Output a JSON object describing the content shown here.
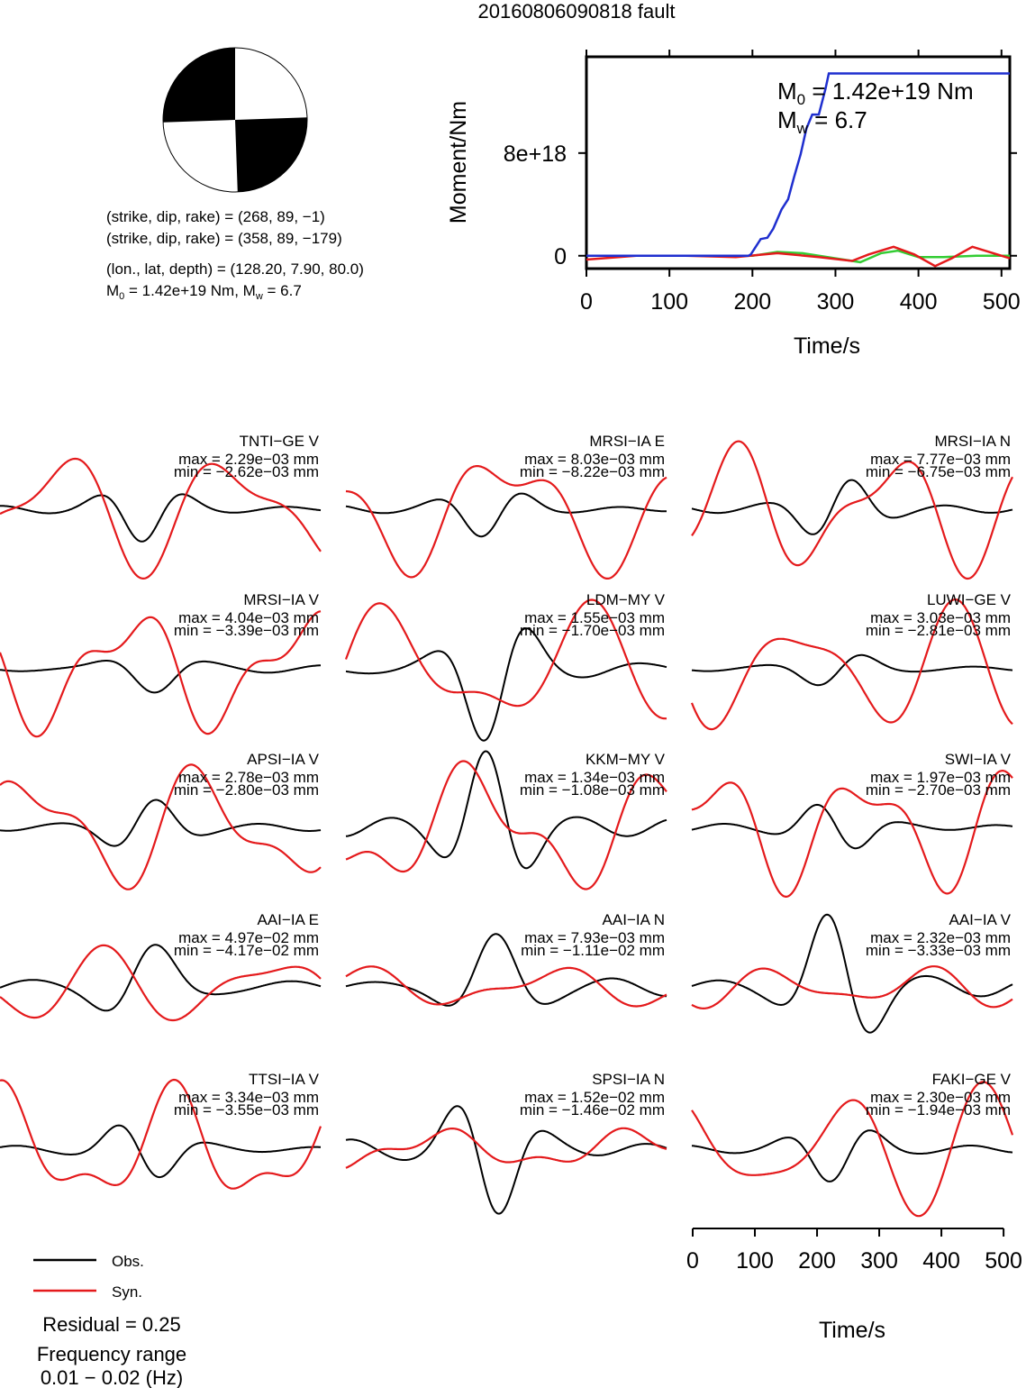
{
  "title": "20160806090818 fault",
  "mechanism": {
    "plane1": "(strike, dip, rake) = (268, 89, −1)",
    "plane2": "(strike, dip, rake) = (358, 89, −179)",
    "location": "(lon., lat, depth) = (128.20, 7.90, 80.0)",
    "m0_label": "M",
    "m0_sub": "0",
    "m0_rest": " = 1.42e+19 Nm, M",
    "mw_sub": "w",
    "mw_rest": " = 6.7",
    "beachball_colors": {
      "fill": "#000000",
      "background": "#ffffff"
    }
  },
  "moment_panel": {
    "ylabel": "Moment/Nm",
    "xlabel": "Time/s",
    "ytick_labels": [
      "0",
      "8e+18"
    ],
    "xtick_labels": [
      "0",
      "100",
      "200",
      "300",
      "400",
      "500"
    ],
    "annotation": {
      "m0_main": "M",
      "m0_sub": "0",
      "m0_rest": " = 1.42e+19 Nm",
      "mw_main": "M",
      "mw_sub": "w",
      "mw_rest": " = 6.7"
    }
  },
  "bottom_axis": {
    "xtick_labels": [
      "0",
      "100",
      "200",
      "300",
      "400",
      "500"
    ],
    "xlabel": "Time/s"
  },
  "legend": {
    "obs_label": "Obs.",
    "syn_label": "Syn.",
    "residual": "Residual = 0.25",
    "freq_title": "Frequency range",
    "freq_value": "0.01 − 0.02 (Hz)"
  },
  "colors": {
    "observed": "#000000",
    "synthetic": "#e41a1c",
    "moment": "#1f2fcf",
    "green": "#33cc33"
  },
  "stations": [
    {
      "name": "TNTI−GE V",
      "max": "max = 2.29e−03 mm",
      "min": "min = −2.62e−03 mm"
    },
    {
      "name": "MRSI−IA E",
      "max": "max = 8.03e−03 mm",
      "min": "min = −8.22e−03 mm"
    },
    {
      "name": "MRSI−IA N",
      "max": "max = 7.77e−03 mm",
      "min": "min = −6.75e−03 mm"
    },
    {
      "name": "MRSI−IA V",
      "max": "max = 4.04e−03 mm",
      "min": "min = −3.39e−03 mm"
    },
    {
      "name": "LDM−MY V",
      "max": "max = 1.55e−03 mm",
      "min": "min = −1.70e−03 mm"
    },
    {
      "name": "LUWI−GE V",
      "max": "max = 3.03e−03 mm",
      "min": "min = −2.81e−03 mm"
    },
    {
      "name": "APSI−IA V",
      "max": "max = 2.78e−03 mm",
      "min": "min = −2.80e−03 mm"
    },
    {
      "name": "KKM−MY V",
      "max": "max = 1.34e−03 mm",
      "min": "min = −1.08e−03 mm"
    },
    {
      "name": "SWI−IA V",
      "max": "max = 1.97e−03 mm",
      "min": "min = −2.70e−03 mm"
    },
    {
      "name": "AAI−IA E",
      "max": "max = 4.97e−02 mm",
      "min": "min = −4.17e−02 mm"
    },
    {
      "name": "AAI−IA N",
      "max": "max = 7.93e−03 mm",
      "min": "min = −1.11e−02 mm"
    },
    {
      "name": "AAI−IA V",
      "max": "max = 2.32e−03 mm",
      "min": "min = −3.33e−03 mm"
    },
    {
      "name": "TTSI−IA V",
      "max": "max = 3.34e−03 mm",
      "min": "min = −3.55e−03 mm"
    },
    {
      "name": "SPSI−IA N",
      "max": "max = 1.52e−02 mm",
      "min": "min = −1.46e−02 mm"
    },
    {
      "name": "FAKI−GE V",
      "max": "max = 2.30e−03 mm",
      "min": "min = −1.94e−03 mm"
    }
  ],
  "chart_data": [
    {
      "type": "line",
      "title": "",
      "xlabel": "Time/s",
      "ylabel": "Moment/Nm",
      "xlim": [
        0,
        510
      ],
      "ylim": [
        -1e+18,
        1.55e+19
      ],
      "series": [
        {
          "color": "blue",
          "x": [
            0,
            195,
            198,
            210,
            218,
            225,
            235,
            243,
            250,
            258,
            265,
            272,
            280,
            288,
            292,
            510
          ],
          "y": [
            0,
            0,
            1e+17,
            1.3e+18,
            1.4e+18,
            2.1e+18,
            3.6e+18,
            4.4e+18,
            6.1e+18,
            7.9e+18,
            9.9e+18,
            1.1e+19,
            1.1e+19,
            1.3e+19,
            1.42e+19,
            1.42e+19
          ]
        },
        {
          "color": "red",
          "x": [
            0,
            60,
            120,
            180,
            230,
            280,
            320,
            340,
            370,
            395,
            420,
            440,
            465,
            490,
            510
          ],
          "y": [
            -3e+17,
            0,
            0,
            -1e+17,
            2e+17,
            -1e+17,
            -4e+17,
            1e+17,
            7e+17,
            1e+17,
            -8e+17,
            -2e+17,
            7e+17,
            2e+17,
            -2e+17
          ]
        },
        {
          "color": "green",
          "x": [
            0,
            200,
            230,
            260,
            300,
            330,
            355,
            375,
            400,
            430,
            470,
            510
          ],
          "y": [
            0,
            0,
            3e+17,
            2e+17,
            -2e+17,
            -5e+17,
            2e+17,
            4e+17,
            -1e+17,
            -1e+17,
            0,
            0
          ]
        }
      ]
    },
    {
      "type": "line",
      "title": "",
      "xlabel": "Time/s",
      "ylabel": "",
      "xlim": [
        0,
        510
      ],
      "note_series": [
        "Obs.",
        "Syn."
      ]
    }
  ]
}
